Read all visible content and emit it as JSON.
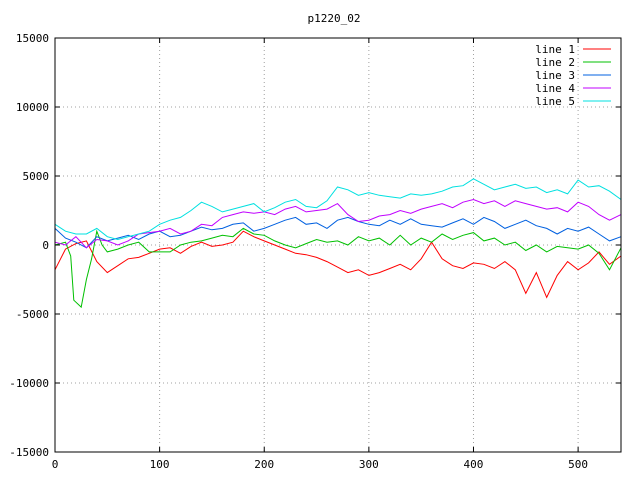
{
  "chart_data": {
    "type": "line",
    "title": "p1220_02",
    "xlabel": "",
    "ylabel": "",
    "xlim": [
      0,
      541
    ],
    "ylim": [
      -15000,
      15000
    ],
    "xticks": [
      0,
      100,
      200,
      300,
      400,
      500
    ],
    "yticks": [
      -15000,
      -10000,
      -5000,
      0,
      5000,
      10000,
      15000
    ],
    "grid": true,
    "legend_position": "top-right",
    "series": [
      {
        "name": "line 1",
        "color": "#ff0000",
        "x": [
          0,
          10,
          20,
          30,
          40,
          50,
          60,
          70,
          80,
          90,
          100,
          110,
          120,
          130,
          140,
          150,
          160,
          170,
          180,
          190,
          200,
          210,
          220,
          230,
          240,
          250,
          260,
          270,
          280,
          290,
          300,
          310,
          320,
          330,
          340,
          350,
          360,
          370,
          380,
          390,
          400,
          410,
          420,
          430,
          440,
          450,
          460,
          470,
          480,
          490,
          500,
          510,
          520,
          530,
          541
        ],
        "y": [
          -1800,
          -300,
          100,
          300,
          -1200,
          -2000,
          -1500,
          -1000,
          -900,
          -600,
          -300,
          -200,
          -600,
          -100,
          200,
          -100,
          0,
          200,
          1000,
          600,
          300,
          0,
          -300,
          -600,
          -700,
          -900,
          -1200,
          -1600,
          -2000,
          -1800,
          -2200,
          -2000,
          -1700,
          -1400,
          -1800,
          -1000,
          200,
          -1000,
          -1500,
          -1700,
          -1300,
          -1400,
          -1700,
          -1200,
          -1800,
          -3500,
          -2000,
          -3800,
          -2200,
          -1200,
          -1800,
          -1300,
          -500,
          -1400,
          -800
        ]
      },
      {
        "name": "line 2",
        "color": "#00c000",
        "x": [
          0,
          10,
          15,
          18,
          25,
          30,
          35,
          40,
          45,
          50,
          60,
          70,
          80,
          90,
          100,
          110,
          120,
          130,
          140,
          150,
          160,
          170,
          180,
          190,
          200,
          210,
          220,
          230,
          240,
          250,
          260,
          270,
          280,
          290,
          300,
          310,
          320,
          330,
          340,
          350,
          360,
          370,
          380,
          390,
          400,
          410,
          420,
          430,
          440,
          450,
          460,
          470,
          480,
          490,
          500,
          510,
          520,
          530,
          541
        ],
        "y": [
          0,
          200,
          -800,
          -4000,
          -4500,
          -2500,
          -1000,
          1000,
          0,
          -500,
          -300,
          0,
          200,
          -500,
          -500,
          -500,
          0,
          200,
          300,
          500,
          700,
          600,
          1200,
          800,
          700,
          300,
          0,
          -200,
          100,
          400,
          200,
          300,
          0,
          600,
          300,
          500,
          0,
          700,
          0,
          500,
          200,
          800,
          400,
          700,
          900,
          300,
          500,
          0,
          200,
          -400,
          0,
          -500,
          -100,
          -200,
          -300,
          0,
          -600,
          -1800,
          -200
        ]
      },
      {
        "name": "line 3",
        "color": "#0060e0",
        "x": [
          0,
          10,
          20,
          30,
          40,
          50,
          60,
          70,
          80,
          90,
          100,
          110,
          120,
          130,
          140,
          150,
          160,
          170,
          180,
          190,
          200,
          210,
          220,
          230,
          240,
          250,
          260,
          270,
          280,
          290,
          300,
          310,
          320,
          330,
          340,
          350,
          360,
          370,
          380,
          390,
          400,
          410,
          420,
          430,
          440,
          450,
          460,
          470,
          480,
          490,
          500,
          510,
          520,
          530,
          541
        ],
        "y": [
          1200,
          500,
          200,
          -200,
          600,
          300,
          500,
          700,
          400,
          800,
          1000,
          600,
          700,
          1000,
          1300,
          1100,
          1200,
          1500,
          1600,
          1000,
          1200,
          1500,
          1800,
          2000,
          1500,
          1600,
          1200,
          1800,
          2000,
          1700,
          1500,
          1400,
          1800,
          1500,
          1900,
          1500,
          1400,
          1300,
          1600,
          1900,
          1500,
          2000,
          1700,
          1200,
          1500,
          1800,
          1400,
          1200,
          800,
          1200,
          1000,
          1300,
          800,
          300,
          600
        ]
      },
      {
        "name": "line 4",
        "color": "#c000ff",
        "x": [
          0,
          10,
          20,
          30,
          40,
          50,
          60,
          70,
          80,
          90,
          100,
          110,
          120,
          130,
          140,
          150,
          160,
          170,
          180,
          190,
          200,
          210,
          220,
          230,
          240,
          250,
          260,
          270,
          280,
          290,
          300,
          310,
          320,
          330,
          340,
          350,
          360,
          370,
          380,
          390,
          400,
          410,
          420,
          430,
          440,
          450,
          460,
          470,
          480,
          490,
          500,
          510,
          520,
          530,
          541
        ],
        "y": [
          200,
          0,
          600,
          -200,
          400,
          300,
          0,
          300,
          800,
          900,
          1000,
          1200,
          800,
          1000,
          1500,
          1400,
          2000,
          2200,
          2400,
          2300,
          2400,
          2200,
          2600,
          2800,
          2400,
          2500,
          2600,
          3000,
          2200,
          1700,
          1800,
          2100,
          2200,
          2500,
          2300,
          2600,
          2800,
          3000,
          2700,
          3100,
          3300,
          3000,
          3200,
          2800,
          3200,
          3000,
          2800,
          2600,
          2700,
          2400,
          3100,
          2800,
          2200,
          1800,
          2200
        ]
      },
      {
        "name": "line 5",
        "color": "#00e0e0",
        "x": [
          0,
          10,
          20,
          30,
          40,
          50,
          60,
          70,
          80,
          90,
          100,
          110,
          120,
          130,
          140,
          150,
          160,
          170,
          180,
          190,
          200,
          210,
          220,
          230,
          240,
          250,
          260,
          270,
          280,
          290,
          300,
          310,
          320,
          330,
          340,
          350,
          360,
          370,
          380,
          390,
          400,
          410,
          420,
          430,
          440,
          450,
          460,
          470,
          480,
          490,
          500,
          510,
          520,
          530,
          541
        ],
        "y": [
          1500,
          1000,
          800,
          800,
          1200,
          600,
          400,
          600,
          800,
          1000,
          1500,
          1800,
          2000,
          2500,
          3100,
          2800,
          2400,
          2600,
          2800,
          3000,
          2400,
          2700,
          3100,
          3300,
          2800,
          2700,
          3200,
          4200,
          4000,
          3600,
          3800,
          3600,
          3500,
          3400,
          3700,
          3600,
          3700,
          3900,
          4200,
          4300,
          4800,
          4400,
          4000,
          4200,
          4400,
          4100,
          4200,
          3800,
          4000,
          3700,
          4700,
          4200,
          4300,
          3900,
          3300
        ]
      }
    ]
  }
}
